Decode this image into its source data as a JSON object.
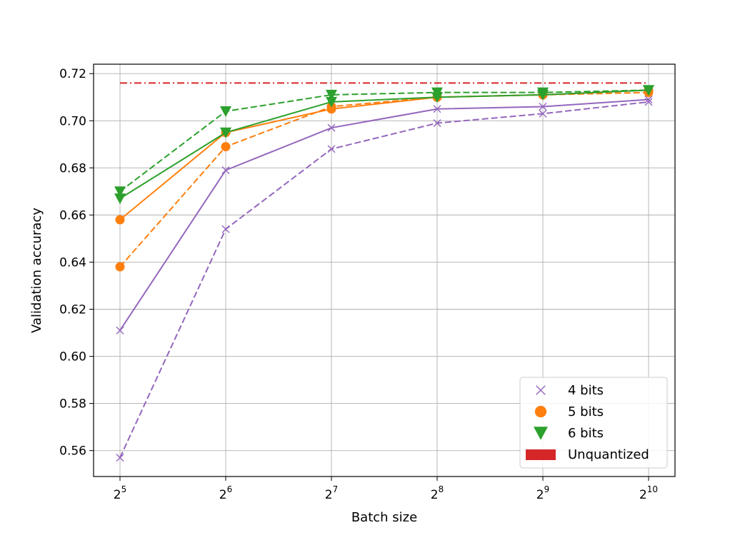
{
  "chart_data": {
    "type": "line",
    "xlabel": "Batch size",
    "ylabel": "Validation accuracy",
    "x_scale": "log2",
    "x": [
      32,
      64,
      128,
      256,
      512,
      1024
    ],
    "x_tick_labels": [
      {
        "base": "2",
        "exp": "5"
      },
      {
        "base": "2",
        "exp": "6"
      },
      {
        "base": "2",
        "exp": "7"
      },
      {
        "base": "2",
        "exp": "8"
      },
      {
        "base": "2",
        "exp": "9"
      },
      {
        "base": "2",
        "exp": "10"
      }
    ],
    "y_ticks": [
      "0.56",
      "0.58",
      "0.60",
      "0.62",
      "0.64",
      "0.66",
      "0.68",
      "0.70",
      "0.72"
    ],
    "ylim": [
      0.549,
      0.724
    ],
    "grid": true,
    "legend_position": "bottom-right",
    "legend": [
      "4 bits",
      "5 bits",
      "6 bits",
      "Unquantized"
    ],
    "series": [
      {
        "name": "4 bits",
        "color": "#9467bd",
        "marker": "x",
        "line_style": "solid",
        "values": [
          0.611,
          0.679,
          0.697,
          0.705,
          0.706,
          0.709
        ]
      },
      {
        "name": "4 bits",
        "color": "#9467bd",
        "marker": "x",
        "line_style": "dashed",
        "values": [
          0.557,
          0.654,
          0.688,
          0.699,
          0.703,
          0.708
        ]
      },
      {
        "name": "5 bits",
        "color": "#ff7f0e",
        "marker": "circle",
        "line_style": "solid",
        "values": [
          0.658,
          0.695,
          0.705,
          0.71,
          0.711,
          0.713
        ]
      },
      {
        "name": "5 bits",
        "color": "#ff7f0e",
        "marker": "circle",
        "line_style": "dashed",
        "values": [
          0.638,
          0.689,
          0.706,
          0.71,
          0.711,
          0.712
        ]
      },
      {
        "name": "6 bits",
        "color": "#2ca02c",
        "marker": "triangle-down",
        "line_style": "solid",
        "values": [
          0.667,
          0.695,
          0.708,
          0.71,
          0.711,
          0.713
        ]
      },
      {
        "name": "6 bits",
        "color": "#2ca02c",
        "marker": "triangle-down",
        "line_style": "dashed",
        "values": [
          0.67,
          0.704,
          0.711,
          0.712,
          0.712,
          0.713
        ]
      },
      {
        "name": "Unquantized",
        "color": "#d62728",
        "marker": "none",
        "line_style": "dash-dot",
        "values": [
          0.716,
          0.716,
          0.716,
          0.716,
          0.716,
          0.716
        ]
      }
    ]
  }
}
